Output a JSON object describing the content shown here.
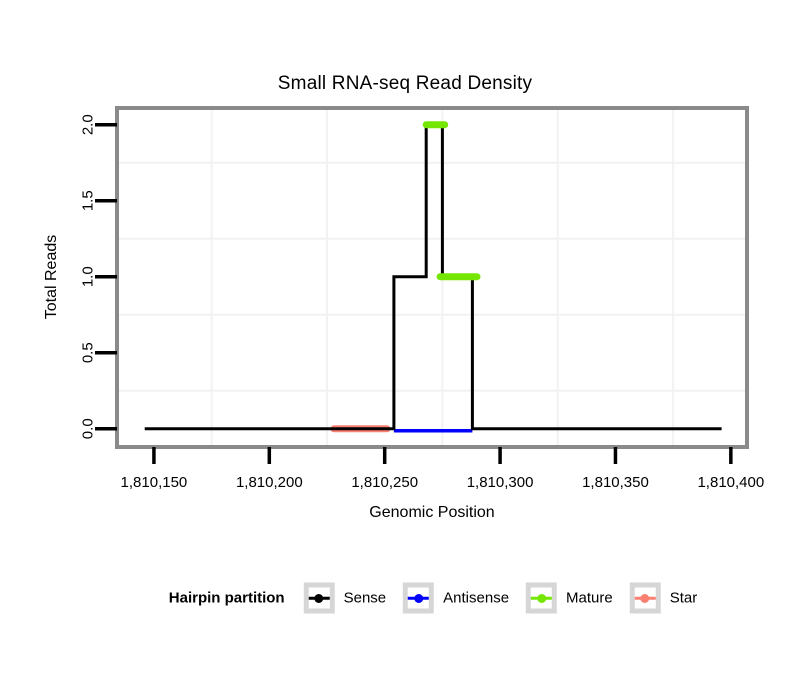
{
  "chart_data": {
    "type": "line",
    "title": "Small RNA-seq Read Density",
    "xlabel": "Genomic Position",
    "ylabel": "Total Reads",
    "xlim": [
      1810134,
      1810407
    ],
    "ylim": [
      -0.12,
      2.11
    ],
    "x_ticks": [
      {
        "value": 1810150,
        "label": "1,810,150"
      },
      {
        "value": 1810200,
        "label": "1,810,200"
      },
      {
        "value": 1810250,
        "label": "1,810,250"
      },
      {
        "value": 1810300,
        "label": "1,810,300"
      },
      {
        "value": 1810350,
        "label": "1,810,350"
      },
      {
        "value": 1810400,
        "label": "1,810,400"
      }
    ],
    "y_ticks": [
      {
        "value": 0.0,
        "label": "0.0"
      },
      {
        "value": 0.5,
        "label": "0.5"
      },
      {
        "value": 1.0,
        "label": "1.0"
      },
      {
        "value": 1.5,
        "label": "1.5"
      },
      {
        "value": 2.0,
        "label": "2.0"
      }
    ],
    "grid": {
      "x_minor": [
        1810175,
        1810225,
        1810275,
        1810325,
        1810375
      ],
      "y_minor": [
        0.25,
        0.75,
        1.25,
        1.75
      ]
    },
    "colors": {
      "frame": "#8a8a8a",
      "grid": "#f2f2f2",
      "sense": "#000000",
      "antisense": "#0000ff",
      "mature": "#74e600",
      "star": "#fa8072"
    },
    "series": [
      {
        "name": "Star",
        "type": "segments",
        "color": "#fa8072",
        "segments": [
          [
            1810228,
            1810251,
            0
          ]
        ]
      },
      {
        "name": "Antisense",
        "type": "segments",
        "color": "#0000ff",
        "segments": [
          [
            1810254,
            1810288,
            0
          ]
        ]
      },
      {
        "name": "Sense",
        "type": "step",
        "color": "#000000",
        "points": [
          [
            1810146,
            0
          ],
          [
            1810254,
            0
          ],
          [
            1810254,
            1
          ],
          [
            1810268,
            1
          ],
          [
            1810268,
            2
          ],
          [
            1810275,
            2
          ],
          [
            1810275,
            1
          ],
          [
            1810288,
            1
          ],
          [
            1810288,
            0
          ],
          [
            1810396,
            0
          ]
        ]
      },
      {
        "name": "Mature",
        "type": "segments",
        "color": "#74e600",
        "segments": [
          [
            1810268,
            1810276,
            2
          ],
          [
            1810274,
            1810290,
            1
          ]
        ]
      }
    ],
    "legend": {
      "title": "Hairpin partition",
      "position": "bottom",
      "entries": [
        {
          "label": "Sense",
          "color": "#000000"
        },
        {
          "label": "Antisense",
          "color": "#0000ff"
        },
        {
          "label": "Mature",
          "color": "#74e600"
        },
        {
          "label": "Star",
          "color": "#fa8072"
        }
      ]
    }
  }
}
